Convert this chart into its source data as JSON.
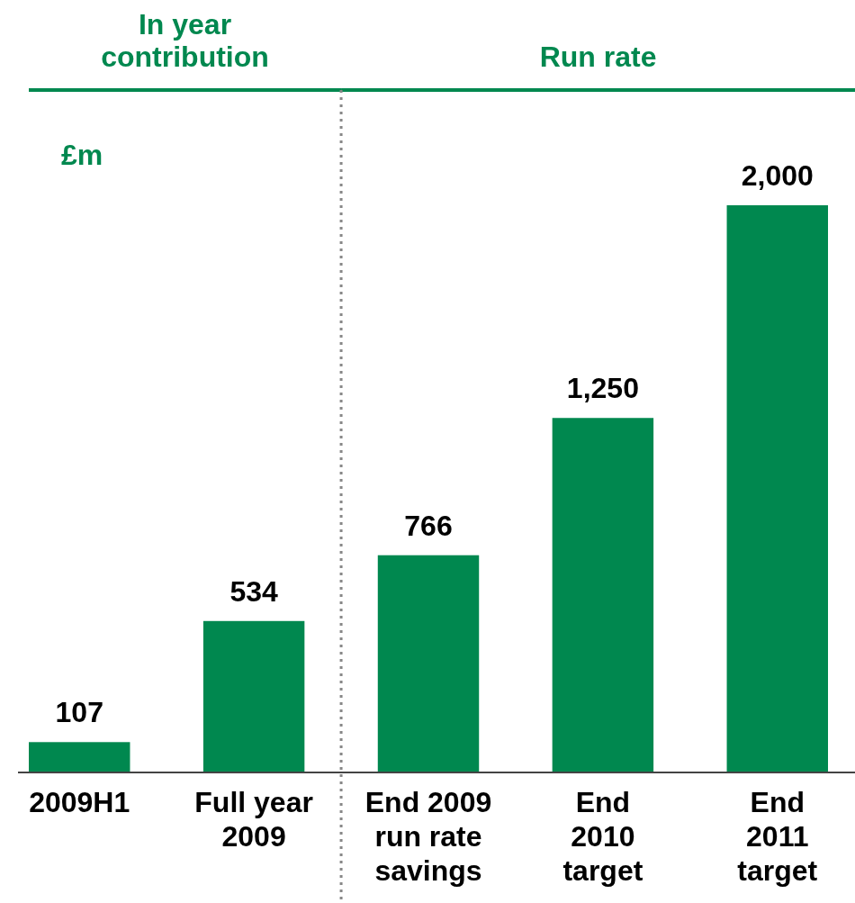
{
  "chart_data": {
    "type": "bar",
    "ylabel": "£m",
    "categories": [
      "2009H1",
      "Full year\n2009",
      "End 2009\nrun rate\nsavings",
      "End\n2010\ntarget",
      "End\n2011\ntarget"
    ],
    "values": [
      107,
      534,
      766,
      1250,
      2000
    ],
    "value_labels": [
      "107",
      "534",
      "766",
      "1,250",
      "2,000"
    ],
    "color": "#00884f",
    "annotations": [
      "In year\ncontribution",
      "Run rate"
    ]
  }
}
